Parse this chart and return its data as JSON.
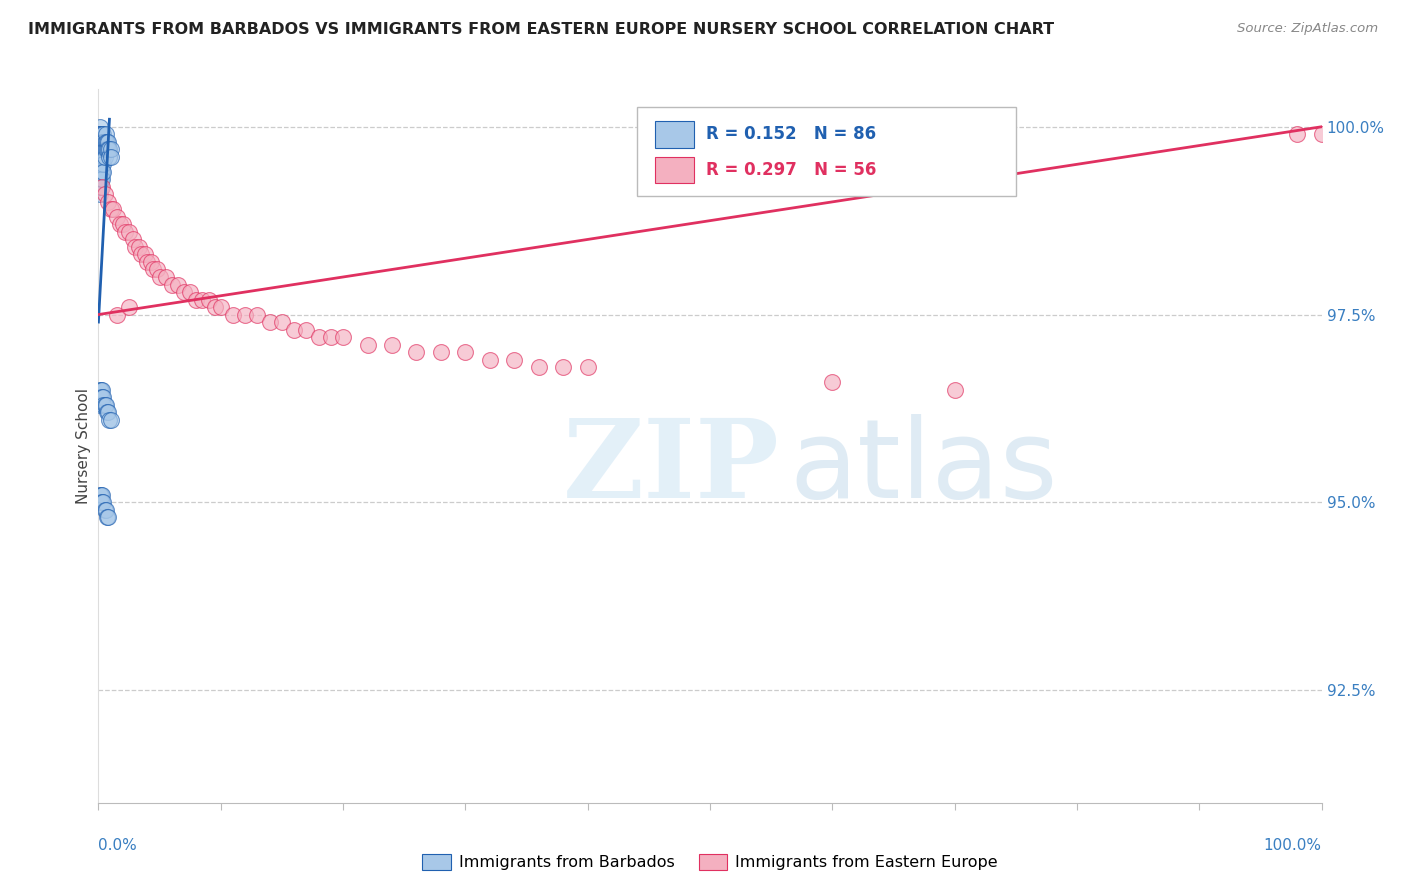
{
  "title": "IMMIGRANTS FROM BARBADOS VS IMMIGRANTS FROM EASTERN EUROPE NURSERY SCHOOL CORRELATION CHART",
  "source": "Source: ZipAtlas.com",
  "ylabel": "Nursery School",
  "legend_label1": "Immigrants from Barbados",
  "legend_label2": "Immigrants from Eastern Europe",
  "R1": 0.152,
  "N1": 86,
  "R2": 0.297,
  "N2": 56,
  "color1": "#a8c8e8",
  "color2": "#f4b0c0",
  "trendline1_color": "#2060b0",
  "trendline2_color": "#e03060",
  "background_color": "#ffffff",
  "xmin": 0.0,
  "xmax": 1.0,
  "ymin": 0.91,
  "ymax": 1.005,
  "yticks": [
    1.0,
    0.975,
    0.95,
    0.925
  ],
  "ytick_labels": [
    "100.0%",
    "97.5%",
    "95.0%",
    "92.5%"
  ],
  "barbados_x": [
    0.001,
    0.001,
    0.001,
    0.001,
    0.001,
    0.001,
    0.001,
    0.001,
    0.001,
    0.001,
    0.001,
    0.001,
    0.001,
    0.001,
    0.001,
    0.001,
    0.001,
    0.001,
    0.001,
    0.001,
    0.002,
    0.002,
    0.002,
    0.002,
    0.002,
    0.002,
    0.002,
    0.002,
    0.002,
    0.002,
    0.002,
    0.002,
    0.003,
    0.003,
    0.003,
    0.003,
    0.003,
    0.003,
    0.003,
    0.003,
    0.004,
    0.004,
    0.004,
    0.004,
    0.004,
    0.004,
    0.005,
    0.005,
    0.005,
    0.006,
    0.006,
    0.006,
    0.007,
    0.007,
    0.008,
    0.008,
    0.009,
    0.009,
    0.01,
    0.01,
    0.001,
    0.001,
    0.001,
    0.002,
    0.002,
    0.003,
    0.003,
    0.004,
    0.004,
    0.005,
    0.006,
    0.007,
    0.008,
    0.009,
    0.01,
    0.001,
    0.001,
    0.002,
    0.002,
    0.003,
    0.003,
    0.004,
    0.005,
    0.006,
    0.007,
    0.008
  ],
  "barbados_y": [
    1.0,
    0.999,
    0.999,
    0.999,
    0.998,
    0.998,
    0.998,
    0.997,
    0.997,
    0.997,
    0.996,
    0.996,
    0.996,
    0.995,
    0.995,
    0.994,
    0.994,
    0.993,
    0.992,
    0.991,
    0.999,
    0.999,
    0.998,
    0.998,
    0.997,
    0.997,
    0.996,
    0.996,
    0.995,
    0.994,
    0.993,
    0.992,
    0.999,
    0.998,
    0.997,
    0.997,
    0.996,
    0.995,
    0.994,
    0.993,
    0.999,
    0.998,
    0.997,
    0.996,
    0.995,
    0.994,
    0.998,
    0.997,
    0.996,
    0.999,
    0.998,
    0.997,
    0.998,
    0.997,
    0.998,
    0.997,
    0.997,
    0.996,
    0.997,
    0.996,
    0.965,
    0.964,
    0.963,
    0.965,
    0.964,
    0.965,
    0.964,
    0.964,
    0.963,
    0.963,
    0.963,
    0.962,
    0.962,
    0.961,
    0.961,
    0.951,
    0.95,
    0.951,
    0.95,
    0.951,
    0.95,
    0.95,
    0.949,
    0.949,
    0.948,
    0.948
  ],
  "eastern_x": [
    0.003,
    0.005,
    0.008,
    0.01,
    0.012,
    0.015,
    0.018,
    0.02,
    0.022,
    0.025,
    0.028,
    0.03,
    0.033,
    0.035,
    0.038,
    0.04,
    0.043,
    0.045,
    0.048,
    0.05,
    0.055,
    0.06,
    0.065,
    0.07,
    0.075,
    0.08,
    0.085,
    0.09,
    0.095,
    0.1,
    0.11,
    0.12,
    0.13,
    0.14,
    0.15,
    0.16,
    0.17,
    0.18,
    0.19,
    0.2,
    0.22,
    0.24,
    0.26,
    0.28,
    0.3,
    0.32,
    0.34,
    0.36,
    0.38,
    0.4,
    0.6,
    0.7,
    0.98,
    1.0,
    0.015,
    0.025
  ],
  "eastern_y": [
    0.992,
    0.991,
    0.99,
    0.989,
    0.989,
    0.988,
    0.987,
    0.987,
    0.986,
    0.986,
    0.985,
    0.984,
    0.984,
    0.983,
    0.983,
    0.982,
    0.982,
    0.981,
    0.981,
    0.98,
    0.98,
    0.979,
    0.979,
    0.978,
    0.978,
    0.977,
    0.977,
    0.977,
    0.976,
    0.976,
    0.975,
    0.975,
    0.975,
    0.974,
    0.974,
    0.973,
    0.973,
    0.972,
    0.972,
    0.972,
    0.971,
    0.971,
    0.97,
    0.97,
    0.97,
    0.969,
    0.969,
    0.968,
    0.968,
    0.968,
    0.966,
    0.965,
    0.999,
    0.999,
    0.975,
    0.976
  ],
  "trendline1_x": [
    0.0,
    0.009
  ],
  "trendline1_y": [
    0.974,
    1.001
  ],
  "trendline2_x": [
    0.0,
    1.0
  ],
  "trendline2_y": [
    0.975,
    1.0
  ]
}
